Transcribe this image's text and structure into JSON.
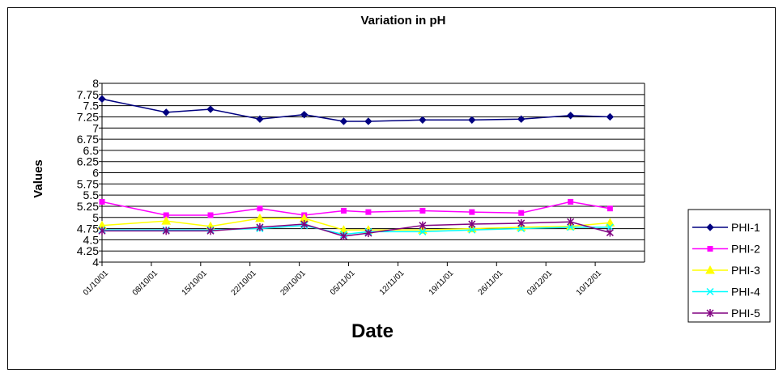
{
  "chart_data": {
    "type": "line",
    "title": "Variation in pH",
    "xlabel": "Date",
    "ylabel": "Values",
    "ylim": [
      4,
      8
    ],
    "yticks": [
      "4",
      "4.25",
      "4.5",
      "4.75",
      "5",
      "5.25",
      "5.5",
      "5.75",
      "6",
      "6.25",
      "6.5",
      "6.75",
      "7",
      "7.25",
      "7.5",
      "7.75",
      "8"
    ],
    "xtick_labels": [
      "01/10/01",
      "08/10/01",
      "15/10/01",
      "22/10/01",
      "29/10/01",
      "05/11/01",
      "12/11/01",
      "19/11/01",
      "26/11/01",
      "03/12/01",
      "10/12/01"
    ],
    "grid": true,
    "legend_position": "right",
    "x": [
      1,
      2.3,
      3.2,
      4.2,
      5.1,
      5.9,
      6.4,
      7.5,
      8.5,
      9.5,
      10.5,
      11.3
    ],
    "series": [
      {
        "name": "PHI-1",
        "color": "#000080",
        "marker": "diamond",
        "values": [
          7.65,
          7.35,
          7.42,
          7.2,
          7.3,
          7.15,
          7.15,
          7.18,
          7.18,
          7.2,
          7.28,
          7.25
        ]
      },
      {
        "name": "PHI-2",
        "color": "#ff00ff",
        "marker": "square",
        "values": [
          5.35,
          5.05,
          5.05,
          5.2,
          5.05,
          5.15,
          5.12,
          5.15,
          5.12,
          5.1,
          5.35,
          5.2
        ]
      },
      {
        "name": "PHI-3",
        "color": "#ffff00",
        "marker": "triangle",
        "values": [
          4.82,
          4.92,
          4.8,
          4.98,
          4.98,
          4.72,
          4.72,
          4.72,
          4.75,
          4.78,
          4.8,
          4.88
        ]
      },
      {
        "name": "PHI-4",
        "color": "#00ffff",
        "marker": "x",
        "values": [
          4.72,
          4.72,
          4.72,
          4.75,
          4.82,
          4.62,
          4.68,
          4.68,
          4.72,
          4.75,
          4.78,
          4.78
        ]
      },
      {
        "name": "PHI-5",
        "color": "#800080",
        "marker": "star",
        "values": [
          4.7,
          4.7,
          4.7,
          4.78,
          4.85,
          4.58,
          4.65,
          4.82,
          4.85,
          4.87,
          4.9,
          4.66
        ]
      }
    ]
  }
}
